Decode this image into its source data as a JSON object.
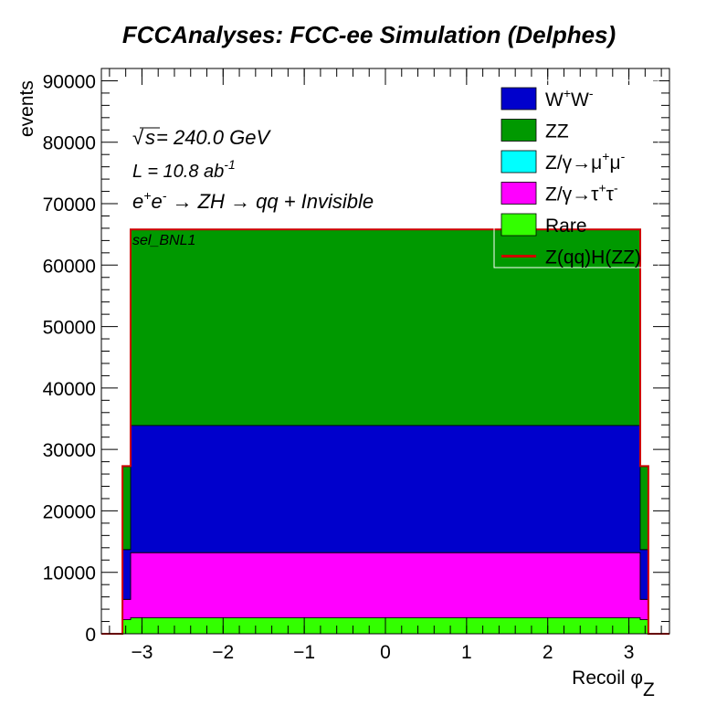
{
  "chart_data": {
    "type": "area",
    "title": "FCCAnalyses: FCC-ee Simulation (Delphes)",
    "xlabel_main": "Recoil ",
    "xlabel_symbol": "φ",
    "xlabel_sub": "Z",
    "ylabel": "events",
    "xlim": [
      -3.5,
      3.5
    ],
    "ylim": [
      0,
      92000
    ],
    "x_ticks": [
      -3,
      -2,
      -1,
      0,
      1,
      2,
      3
    ],
    "x_tick_labels": [
      "−3",
      "−2",
      "−1",
      "0",
      "1",
      "2",
      "3"
    ],
    "y_ticks": [
      0,
      10000,
      20000,
      30000,
      40000,
      50000,
      60000,
      70000,
      80000,
      90000
    ],
    "y_tick_labels": [
      "0",
      "10000",
      "20000",
      "30000",
      "40000",
      "50000",
      "60000",
      "70000",
      "80000",
      "90000"
    ],
    "stacked": true,
    "bins": {
      "edge_x": 3.14,
      "width": 0.1,
      "edge_bin_width": 0.1
    },
    "series": [
      {
        "name": "Rare",
        "color": "#33ff00",
        "edge_value": 2300,
        "value": 2600
      },
      {
        "name": "Z/γ→τ⁺τ⁻",
        "color": "#ff00ff",
        "edge_value": 3300,
        "value": 10600
      },
      {
        "name": "Z/γ→μ⁺μ⁻",
        "color": "#00ffff",
        "edge_value": 0,
        "value": 0
      },
      {
        "name": "W⁺W⁻",
        "color": "#0000cc",
        "edge_value": 8100,
        "value": 20700
      },
      {
        "name": "ZZ",
        "color": "#009900",
        "edge_value": 13500,
        "value": 31900
      }
    ],
    "signal": {
      "name": "Z(qq)H(ZZ)",
      "color": "#cc0000",
      "edge_value": 27300,
      "value": 65800
    },
    "legend_position": "top-right"
  },
  "annotations": {
    "sqrt_symbol": "√",
    "sqrt_s": "s",
    "energy": " = 240.0 GeV",
    "lumi_prefix": "L = 10.8 ab",
    "lumi_exp": "-1",
    "process_1": "e",
    "process_sup1": "+",
    "process_2": "e",
    "process_sup2": "-",
    "process_3": " → ZH → qq + Invisible",
    "selection": "sel_BNL1"
  },
  "legend": {
    "items": [
      {
        "main": "W",
        "sup1": "+",
        "main2": "W",
        "sup2": "-",
        "color": "#0000cc",
        "kind": "box"
      },
      {
        "main": "ZZ",
        "color": "#009900",
        "kind": "box"
      },
      {
        "main": "Z/γ→μ",
        "sup1": "+",
        "main2": "μ",
        "sup2": "-",
        "color": "#00ffff",
        "kind": "box"
      },
      {
        "main": "Z/γ→τ",
        "sup1": "+",
        "main2": "τ",
        "sup2": "-",
        "color": "#ff00ff",
        "kind": "box"
      },
      {
        "main": "Rare",
        "color": "#33ff00",
        "kind": "box"
      },
      {
        "main": "Z(qq)H(ZZ)",
        "color": "#cc0000",
        "kind": "line"
      }
    ]
  }
}
